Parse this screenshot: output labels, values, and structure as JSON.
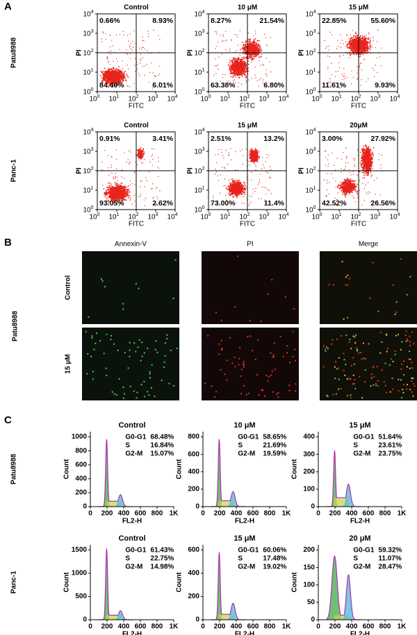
{
  "panel_a": {
    "label": "A",
    "x_label": "FITC",
    "y_label": "PI",
    "tick_base": "10",
    "tick_exps": [
      "0",
      "1",
      "2",
      "3",
      "4"
    ],
    "rows": [
      {
        "label": "Patu8988",
        "plots": [
          {
            "title": "Control",
            "quadrants": [
              "0.66%",
              "8.93%",
              "84.40%",
              "6.01%"
            ]
          },
          {
            "title": "10 μM",
            "quadrants": [
              "8.27%",
              "21.54%",
              "63.38%",
              "6.80%"
            ]
          },
          {
            "title": "15 μM",
            "quadrants": [
              "22.85%",
              "55.60%",
              "11.61%",
              "9.93%"
            ]
          }
        ]
      },
      {
        "label": "Panc-1",
        "plots": [
          {
            "title": "Control",
            "quadrants": [
              "0.91%",
              "3.41%",
              "93.05%",
              "2.62%"
            ]
          },
          {
            "title": "15 μM",
            "quadrants": [
              "2.51%",
              "13.2%",
              "73.00%",
              "11.4%"
            ]
          },
          {
            "title": "20μM",
            "quadrants": [
              "3.00%",
              "27.92%",
              "42.52%",
              "26.56%"
            ]
          }
        ]
      }
    ]
  },
  "panel_b": {
    "label": "B",
    "columns": [
      "Annexin-V",
      "PI",
      "Merge"
    ],
    "group_label": "Patu8988",
    "rows": [
      "Control",
      "15 μM"
    ]
  },
  "panel_c": {
    "label": "C",
    "x_label": "FL2-H",
    "y_label": "Count",
    "xticks": [
      "0",
      "200",
      "400",
      "600",
      "800",
      "1K"
    ],
    "rows": [
      {
        "label": "Patu8988",
        "plots": [
          {
            "title": "Control",
            "yticks": [
              "0",
              "200",
              "400",
              "600",
              "800",
              "1000"
            ],
            "phases": [
              [
                "G0-G1",
                "68.48%"
              ],
              [
                "S",
                "16.84%"
              ],
              [
                "G2-M",
                "15.07%"
              ]
            ]
          },
          {
            "title": "10 μM",
            "yticks": [
              "0",
              "200",
              "400",
              "600",
              "800"
            ],
            "phases": [
              [
                "G0-G1",
                "58.65%"
              ],
              [
                "S",
                "21.69%"
              ],
              [
                "G2-M",
                "19.59%"
              ]
            ]
          },
          {
            "title": "15 μM",
            "yticks": [
              "0",
              "100",
              "200",
              "300",
              "400"
            ],
            "phases": [
              [
                "G0-G1",
                "51.64%"
              ],
              [
                "S",
                "23.61%"
              ],
              [
                "G2-M",
                "23.75%"
              ]
            ]
          }
        ]
      },
      {
        "label": "Panc-1",
        "plots": [
          {
            "title": "Control",
            "yticks": [
              "0",
              "500",
              "1000",
              "1500"
            ],
            "phases": [
              [
                "G0-G1",
                "61.43%"
              ],
              [
                "S",
                "22.75%"
              ],
              [
                "G2-M",
                "14.98%"
              ]
            ]
          },
          {
            "title": "15  μM",
            "yticks": [
              "0",
              "200",
              "400",
              "600"
            ],
            "phases": [
              [
                "G0-G1",
                "60.06%"
              ],
              [
                "S",
                "17.48%"
              ],
              [
                "G2-M",
                "19.02%"
              ]
            ]
          },
          {
            "title": "20 μM",
            "yticks": [
              "0",
              "50",
              "100",
              "150",
              "200"
            ],
            "phases": [
              [
                "G0-G1",
                "59.32%"
              ],
              [
                "S",
                "11.07%"
              ],
              [
                "G2-M",
                "28.47%"
              ]
            ]
          }
        ]
      }
    ]
  }
}
